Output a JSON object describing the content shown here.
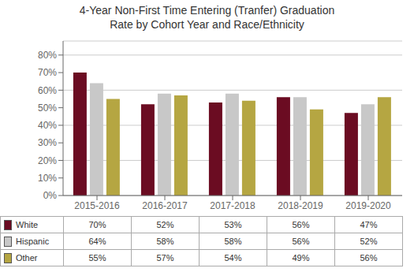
{
  "chart_data": {
    "type": "bar",
    "title": "4-Year Non-First Time Entering (Tranfer) Graduation\nRate by Cohort Year and Race/Ethnicity",
    "categories": [
      "2015-2016",
      "2016-2017",
      "2017-2018",
      "2018-2019",
      "2019-2020"
    ],
    "series": [
      {
        "name": "White",
        "color": "#6B0C22",
        "values": [
          0.7,
          0.52,
          0.53,
          0.56,
          0.47
        ],
        "value_labels": [
          "70%",
          "52%",
          "53%",
          "56%",
          "47%"
        ]
      },
      {
        "name": "Hispanic",
        "color": "#C8C8C8",
        "values": [
          0.64,
          0.58,
          0.58,
          0.56,
          0.52
        ],
        "value_labels": [
          "64%",
          "58%",
          "58%",
          "56%",
          "52%"
        ]
      },
      {
        "name": "Other",
        "color": "#B5A642",
        "values": [
          0.55,
          0.57,
          0.54,
          0.49,
          0.56
        ],
        "value_labels": [
          "55%",
          "57%",
          "54%",
          "49%",
          "56%"
        ]
      }
    ],
    "ylim": [
      0,
      0.88
    ],
    "yticks": [
      {
        "value": 0.0,
        "label": "0%"
      },
      {
        "value": 0.1,
        "label": "10%"
      },
      {
        "value": 0.2,
        "label": "20%"
      },
      {
        "value": 0.3,
        "label": "30%"
      },
      {
        "value": 0.4,
        "label": "40%"
      },
      {
        "value": 0.5,
        "label": "50%"
      },
      {
        "value": 0.6,
        "label": "60%"
      },
      {
        "value": 0.7,
        "label": "70%"
      },
      {
        "value": 0.8,
        "label": "80%"
      }
    ],
    "grid": true
  }
}
